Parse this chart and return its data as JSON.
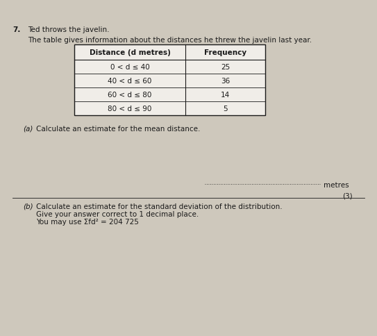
{
  "question_number": "7.",
  "question_text": "Ted throws the javelin.",
  "table_intro": "The table gives information about the distances he threw the javelin last year.",
  "table_headers": [
    "Distance (d metres)",
    "Frequency"
  ],
  "table_rows": [
    [
      "0 < d ≤ 40",
      "25"
    ],
    [
      "40 < d ≤ 60",
      "36"
    ],
    [
      "60 < d ≤ 80",
      "14"
    ],
    [
      "80 < d ≤ 90",
      "5"
    ]
  ],
  "part_a_label": "(a)",
  "part_a_text": "Calculate an estimate for the mean distance.",
  "answer_line_label": "metres",
  "marks_a": "(3)",
  "part_b_label": "(b)",
  "part_b_text": "Calculate an estimate for the standard deviation of the distribution.",
  "part_b_line2": "Give your answer correct to 1 decimal place.",
  "part_b_line3": "You may use Σfd² = 204 725",
  "background_color": "#cec8bc",
  "text_color": "#1a1a1a",
  "table_bg": "#f0ede8",
  "table_border": "#1a1a1a"
}
